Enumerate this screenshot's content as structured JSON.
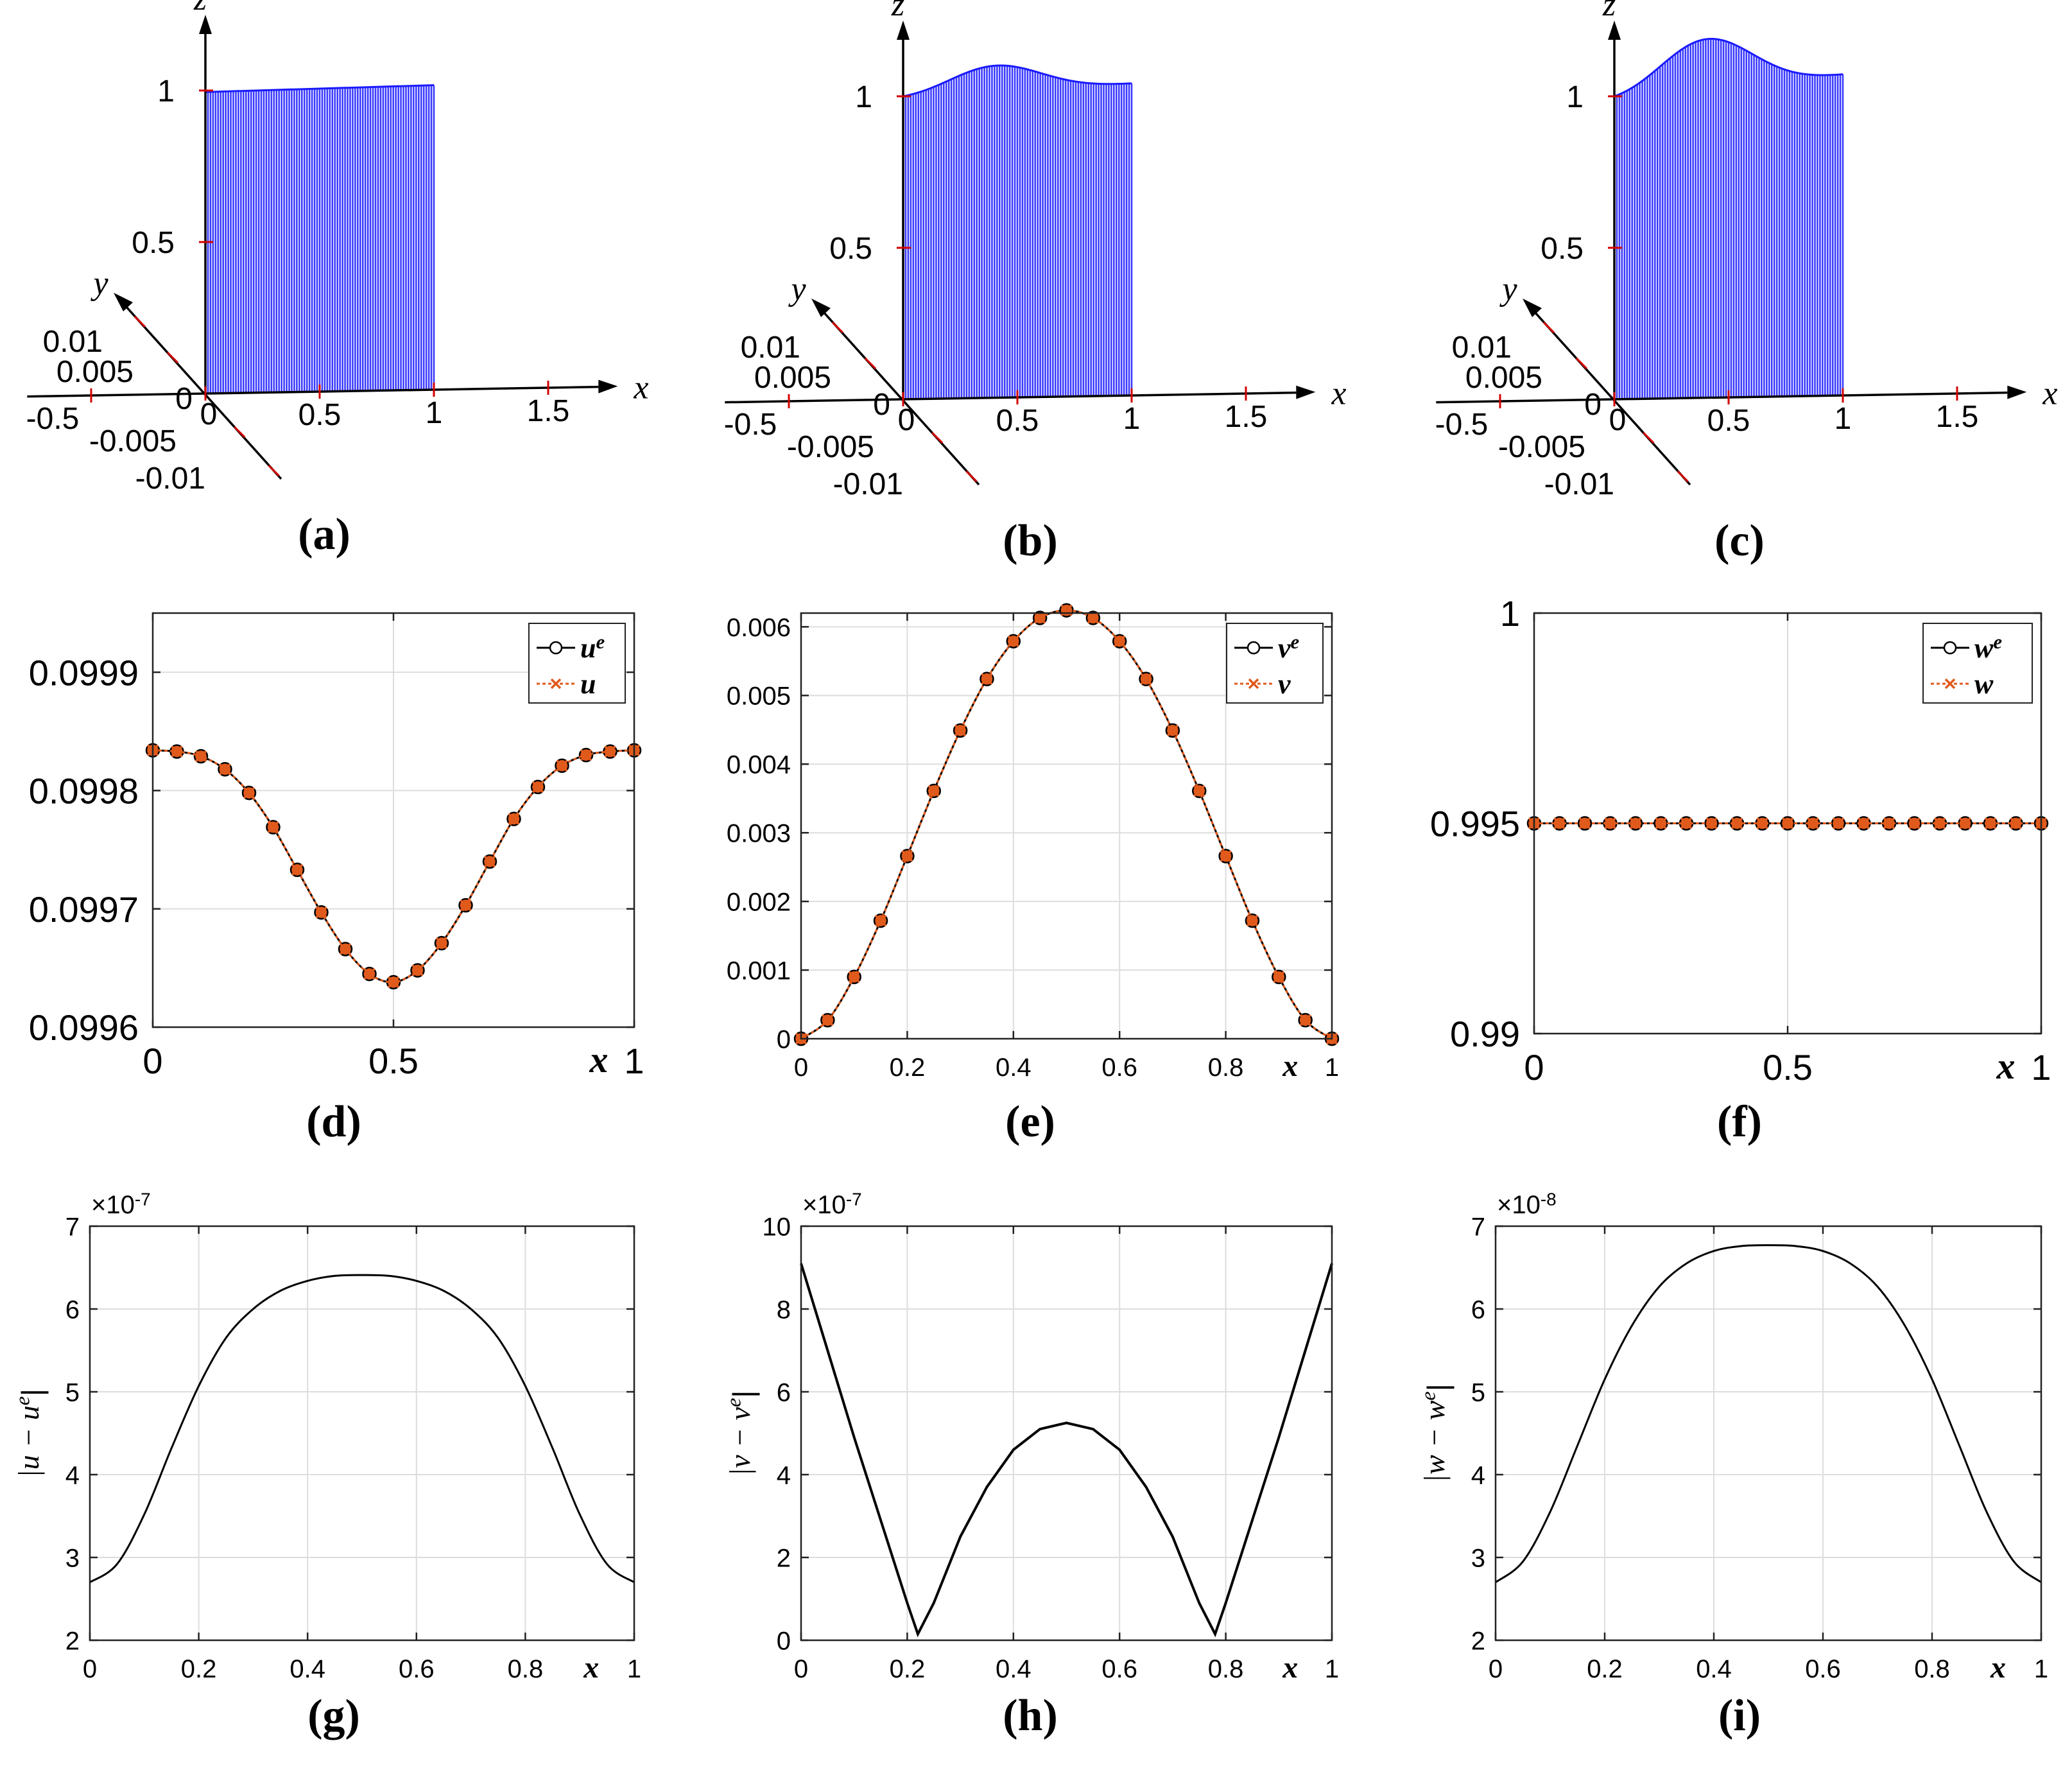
{
  "figure_labels": [
    "(a)",
    "(b)",
    "(c)",
    "(d)",
    "(e)",
    "(f)",
    "(g)",
    "(h)",
    "(i)"
  ],
  "colors": {
    "surface": "#1a1aff",
    "tick_red": "#d40000",
    "exact": "#000000",
    "numerical": "#e05a1c",
    "grid": "#dddddd"
  },
  "chart_data": [
    {
      "id": "a",
      "type": "surface3d",
      "label": "(a)",
      "axes": {
        "x": "x",
        "y": "y",
        "z": "z"
      },
      "x_ticks": [
        "-0.5",
        "0",
        "0.5",
        "1",
        "1.5"
      ],
      "y_ticks": [
        "0.01",
        "0.005",
        "0",
        "-0.005",
        "-0.01"
      ],
      "z_ticks": [
        "0.5",
        "1"
      ],
      "surface": {
        "x_range": [
          0,
          1
        ],
        "z_start": 0.995,
        "z_end": 1.005,
        "bump": 0.0
      }
    },
    {
      "id": "b",
      "type": "surface3d",
      "label": "(b)",
      "axes": {
        "x": "x",
        "y": "y",
        "z": "z"
      },
      "x_ticks": [
        "-0.5",
        "0",
        "0.5",
        "1",
        "1.5"
      ],
      "y_ticks": [
        "0.01",
        "0.005",
        "0",
        "-0.005",
        "-0.01"
      ],
      "z_ticks": [
        "0.5",
        "1"
      ],
      "surface": {
        "x_range": [
          0,
          1
        ],
        "z_start": 1.0,
        "z_end": 1.03,
        "bump": 0.1
      }
    },
    {
      "id": "c",
      "type": "surface3d",
      "label": "(c)",
      "axes": {
        "x": "x",
        "y": "y",
        "z": "z"
      },
      "x_ticks": [
        "-0.5",
        "0",
        "0.5",
        "1",
        "1.5"
      ],
      "y_ticks": [
        "0.01",
        "0.005",
        "0",
        "-0.005",
        "-0.01"
      ],
      "z_ticks": [
        "0.5",
        "1"
      ],
      "surface": {
        "x_range": [
          0,
          1
        ],
        "z_start": 1.0,
        "z_end": 1.06,
        "bump": 0.19
      }
    },
    {
      "id": "d",
      "type": "line",
      "label": "(d)",
      "xlabel": "x",
      "ylabel": "",
      "xlim": [
        0,
        1
      ],
      "ylim": [
        0.0996,
        0.09995
      ],
      "xticks": [
        0,
        0.5,
        1
      ],
      "xtick_labels": [
        "0",
        "0.5",
        "1"
      ],
      "yticks": [
        0.0996,
        0.0997,
        0.0998,
        0.0999
      ],
      "ytick_labels": [
        "0.0996",
        "0.0997",
        "0.0998",
        "0.0999"
      ],
      "legend": [
        {
          "base": "u",
          "sup": "e"
        },
        {
          "base": "u",
          "sup": ""
        }
      ],
      "legend_position": "top-right",
      "series": [
        {
          "name": "u^e",
          "marker": "circle",
          "x": [
            0,
            0.05,
            0.1,
            0.15,
            0.2,
            0.25,
            0.3,
            0.35,
            0.4,
            0.45,
            0.5,
            0.55,
            0.6,
            0.65,
            0.7,
            0.75,
            0.8,
            0.85,
            0.9,
            0.95,
            1
          ],
          "values": [
            0.099834,
            0.099833,
            0.099829,
            0.099818,
            0.099798,
            0.099769,
            0.099733,
            0.099697,
            0.099666,
            0.099645,
            0.099638,
            0.099648,
            0.099671,
            0.099703,
            0.09974,
            0.099776,
            0.099803,
            0.099821,
            0.09983,
            0.099833,
            0.099834
          ]
        },
        {
          "name": "u",
          "marker": "x",
          "x": [
            0,
            0.05,
            0.1,
            0.15,
            0.2,
            0.25,
            0.3,
            0.35,
            0.4,
            0.45,
            0.5,
            0.55,
            0.6,
            0.65,
            0.7,
            0.75,
            0.8,
            0.85,
            0.9,
            0.95,
            1
          ],
          "values": [
            0.099834,
            0.099833,
            0.099829,
            0.099818,
            0.099798,
            0.099769,
            0.099733,
            0.099697,
            0.099666,
            0.099645,
            0.099638,
            0.099648,
            0.099671,
            0.099703,
            0.09974,
            0.099776,
            0.099803,
            0.099821,
            0.09983,
            0.099833,
            0.099834
          ]
        }
      ]
    },
    {
      "id": "e",
      "type": "line",
      "label": "(e)",
      "xlabel": "x",
      "ylabel": "",
      "xlim": [
        0,
        1
      ],
      "ylim": [
        0,
        0.0062
      ],
      "xticks": [
        0,
        0.2,
        0.4,
        0.6,
        0.8,
        1
      ],
      "xtick_labels": [
        "0",
        "0.2",
        "0.4",
        "0.6",
        "0.8",
        "1"
      ],
      "yticks": [
        0,
        0.001,
        0.002,
        0.003,
        0.004,
        0.005,
        0.006
      ],
      "ytick_labels": [
        "0",
        "0.001",
        "0.002",
        "0.003",
        "0.004",
        "0.005",
        "0.006"
      ],
      "legend": [
        {
          "base": "v",
          "sup": "e"
        },
        {
          "base": "v",
          "sup": ""
        }
      ],
      "legend_position": "top-right",
      "series": [
        {
          "name": "v^e",
          "marker": "circle",
          "x": [
            0,
            0.05,
            0.1,
            0.15,
            0.2,
            0.25,
            0.3,
            0.35,
            0.4,
            0.45,
            0.5,
            0.55,
            0.6,
            0.65,
            0.7,
            0.75,
            0.8,
            0.85,
            0.9,
            0.95,
            1
          ],
          "values": [
            0,
            0.00027,
            0.0009,
            0.00172,
            0.00266,
            0.00361,
            0.00449,
            0.00524,
            0.00579,
            0.00613,
            0.00624,
            0.00613,
            0.00579,
            0.00524,
            0.00449,
            0.00361,
            0.00266,
            0.00172,
            0.0009,
            0.00027,
            0
          ]
        },
        {
          "name": "v",
          "marker": "x",
          "x": [
            0,
            0.05,
            0.1,
            0.15,
            0.2,
            0.25,
            0.3,
            0.35,
            0.4,
            0.45,
            0.5,
            0.55,
            0.6,
            0.65,
            0.7,
            0.75,
            0.8,
            0.85,
            0.9,
            0.95,
            1
          ],
          "values": [
            0,
            0.00027,
            0.0009,
            0.00172,
            0.00266,
            0.00361,
            0.00449,
            0.00524,
            0.00579,
            0.00613,
            0.00624,
            0.00613,
            0.00579,
            0.00524,
            0.00449,
            0.00361,
            0.00266,
            0.00172,
            0.0009,
            0.00027,
            0
          ]
        }
      ]
    },
    {
      "id": "f",
      "type": "line",
      "label": "(f)",
      "xlabel": "x",
      "ylabel": "",
      "xlim": [
        0,
        1
      ],
      "ylim": [
        0.99,
        1.0
      ],
      "xticks": [
        0,
        0.5,
        1
      ],
      "xtick_labels": [
        "0",
        "0.5",
        "1"
      ],
      "yticks": [
        0.99,
        0.995,
        1.0
      ],
      "ytick_labels": [
        "0.99",
        "0.995",
        "1"
      ],
      "legend": [
        {
          "base": "w",
          "sup": "e"
        },
        {
          "base": "w",
          "sup": ""
        }
      ],
      "legend_position": "top-right",
      "series": [
        {
          "name": "w^e",
          "marker": "circle",
          "x": [
            0,
            0.05,
            0.1,
            0.15,
            0.2,
            0.25,
            0.3,
            0.35,
            0.4,
            0.45,
            0.5,
            0.55,
            0.6,
            0.65,
            0.7,
            0.75,
            0.8,
            0.85,
            0.9,
            0.95,
            1
          ],
          "values": [
            0.995,
            0.995,
            0.995,
            0.995,
            0.995,
            0.995,
            0.995,
            0.995,
            0.995,
            0.995,
            0.995,
            0.995,
            0.995,
            0.995,
            0.995,
            0.995,
            0.995,
            0.995,
            0.995,
            0.995,
            0.995
          ]
        },
        {
          "name": "w",
          "marker": "x",
          "x": [
            0,
            0.05,
            0.1,
            0.15,
            0.2,
            0.25,
            0.3,
            0.35,
            0.4,
            0.45,
            0.5,
            0.55,
            0.6,
            0.65,
            0.7,
            0.75,
            0.8,
            0.85,
            0.9,
            0.95,
            1
          ],
          "values": [
            0.995,
            0.995,
            0.995,
            0.995,
            0.995,
            0.995,
            0.995,
            0.995,
            0.995,
            0.995,
            0.995,
            0.995,
            0.995,
            0.995,
            0.995,
            0.995,
            0.995,
            0.995,
            0.995,
            0.995,
            0.995
          ]
        }
      ]
    },
    {
      "id": "g",
      "type": "line",
      "label": "(g)",
      "xlabel": "x",
      "ylabel": {
        "pre": "|u − u",
        "sup": "e",
        "post": "|"
      },
      "exponent": {
        "base": "×10",
        "exp": "-7"
      },
      "xlim": [
        0,
        1
      ],
      "ylim": [
        2,
        7
      ],
      "xticks": [
        0,
        0.2,
        0.4,
        0.6,
        0.8,
        1
      ],
      "xtick_labels": [
        "0",
        "0.2",
        "0.4",
        "0.6",
        "0.8",
        "1"
      ],
      "yticks": [
        2,
        3,
        4,
        5,
        6,
        7
      ],
      "ytick_labels": [
        "2",
        "3",
        "4",
        "5",
        "6",
        "7"
      ],
      "series": [
        {
          "name": "|u-u^e|",
          "x": [
            0,
            0.05,
            0.1,
            0.15,
            0.2,
            0.25,
            0.3,
            0.35,
            0.4,
            0.45,
            0.5,
            0.55,
            0.6,
            0.65,
            0.7,
            0.75,
            0.8,
            0.85,
            0.9,
            0.95,
            1
          ],
          "values": [
            2.7,
            2.92,
            3.52,
            4.32,
            5.07,
            5.65,
            6.0,
            6.22,
            6.34,
            6.4,
            6.41,
            6.4,
            6.34,
            6.22,
            6.0,
            5.65,
            5.07,
            4.32,
            3.52,
            2.92,
            2.7
          ]
        }
      ]
    },
    {
      "id": "h",
      "type": "line",
      "label": "(h)",
      "xlabel": "x",
      "ylabel": {
        "pre": "|v − v",
        "sup": "e",
        "post": "|"
      },
      "exponent": {
        "base": "×10",
        "exp": "-7"
      },
      "xlim": [
        0,
        1
      ],
      "ylim": [
        0,
        10
      ],
      "xticks": [
        0,
        0.2,
        0.4,
        0.6,
        0.8,
        1
      ],
      "xtick_labels": [
        "0",
        "0.2",
        "0.4",
        "0.6",
        "0.8",
        "1"
      ],
      "yticks": [
        0,
        2,
        4,
        6,
        8,
        10
      ],
      "ytick_labels": [
        "0",
        "2",
        "4",
        "6",
        "8",
        "10"
      ],
      "series": [
        {
          "name": "|v-v^e|",
          "x": [
            0,
            0.05,
            0.1,
            0.15,
            0.2,
            0.22,
            0.25,
            0.3,
            0.35,
            0.4,
            0.45,
            0.5,
            0.55,
            0.6,
            0.65,
            0.7,
            0.75,
            0.78,
            0.8,
            0.85,
            0.9,
            0.95,
            1
          ],
          "values": [
            9.1,
            7.0,
            4.9,
            2.9,
            0.9,
            0.15,
            0.9,
            2.5,
            3.7,
            4.6,
            5.1,
            5.25,
            5.1,
            4.6,
            3.7,
            2.5,
            0.9,
            0.15,
            0.9,
            2.9,
            4.9,
            7.0,
            9.1
          ]
        }
      ]
    },
    {
      "id": "i",
      "type": "line",
      "label": "(i)",
      "xlabel": "x",
      "ylabel": {
        "pre": "|w − w",
        "sup": "e",
        "post": "|"
      },
      "exponent": {
        "base": "×10",
        "exp": "-8"
      },
      "xlim": [
        0,
        1
      ],
      "ylim": [
        2,
        7
      ],
      "xticks": [
        0,
        0.2,
        0.4,
        0.6,
        0.8,
        1
      ],
      "xtick_labels": [
        "0",
        "0.2",
        "0.4",
        "0.6",
        "0.8",
        "1"
      ],
      "yticks": [
        2,
        3,
        4,
        5,
        6,
        7
      ],
      "ytick_labels": [
        "2",
        "3",
        "4",
        "5",
        "6",
        "7"
      ],
      "series": [
        {
          "name": "|w-w^e|",
          "x": [
            0,
            0.05,
            0.1,
            0.15,
            0.2,
            0.25,
            0.3,
            0.35,
            0.4,
            0.45,
            0.5,
            0.55,
            0.6,
            0.65,
            0.7,
            0.75,
            0.8,
            0.85,
            0.9,
            0.95,
            1
          ],
          "values": [
            2.7,
            2.95,
            3.55,
            4.35,
            5.15,
            5.8,
            6.27,
            6.55,
            6.7,
            6.76,
            6.77,
            6.76,
            6.7,
            6.55,
            6.27,
            5.8,
            5.15,
            4.35,
            3.55,
            2.95,
            2.7
          ]
        }
      ]
    }
  ]
}
